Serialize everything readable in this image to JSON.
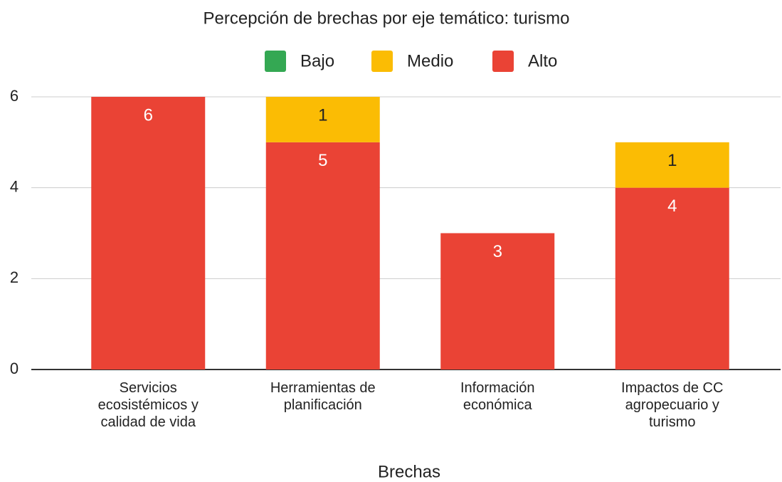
{
  "chart_data": {
    "type": "stacked_bar",
    "title": "Percepción de brechas por eje temático: turismo",
    "x_label": "Brechas",
    "categories": [
      "Servicios ecosistémicos y calidad de vida",
      "Herramientas de planificación",
      "Información económica",
      "Impactos de CC agropecuario y turismo"
    ],
    "series": [
      {
        "name": "Bajo",
        "color": "#34a853",
        "values": [
          0,
          0,
          0,
          0
        ]
      },
      {
        "name": "Alto",
        "color": "#ea4335",
        "values": [
          6,
          5,
          3,
          4
        ]
      },
      {
        "name": "Medio",
        "color": "#fbbc04",
        "values": [
          0,
          1,
          0,
          1
        ]
      }
    ],
    "legend_order": [
      "Bajo",
      "Medio",
      "Alto"
    ],
    "ylim": [
      0,
      6
    ],
    "yticks": [
      0,
      2,
      4,
      6
    ],
    "grid": true,
    "legend": "top"
  }
}
